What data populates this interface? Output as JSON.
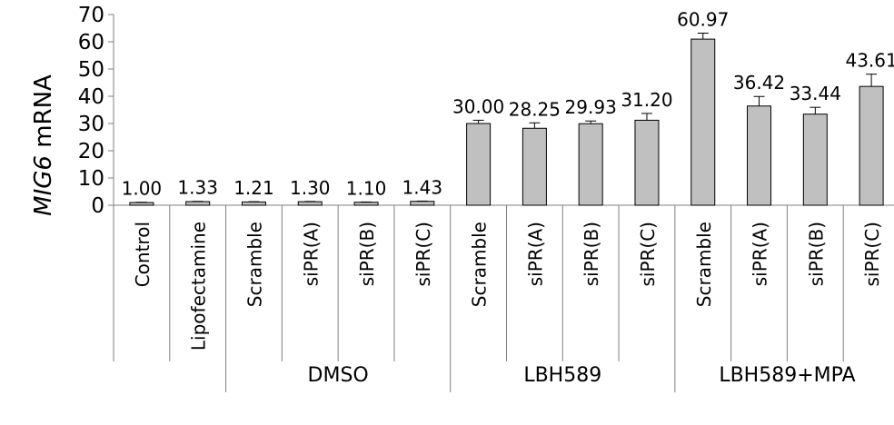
{
  "chart_data": {
    "type": "bar",
    "ylabel_italic": "MIG6",
    "ylabel_rest": " mRNA",
    "ylim": [
      0,
      70
    ],
    "yticks": [
      0,
      10,
      20,
      30,
      40,
      50,
      60,
      70
    ],
    "grid": false,
    "bar_color": "#c0c0c0",
    "categories": [
      "Control",
      "Lipofectamine",
      "Scramble",
      "siPR(A)",
      "siPR(B)",
      "siPR(C)",
      "Scramble",
      "siPR(A)",
      "siPR(B)",
      "siPR(C)",
      "Scramble",
      "siPR(A)",
      "siPR(B)",
      "siPR(C)"
    ],
    "values": [
      1.0,
      1.33,
      1.21,
      1.3,
      1.1,
      1.43,
      30.0,
      28.25,
      29.93,
      31.2,
      60.97,
      36.42,
      33.44,
      43.61
    ],
    "value_labels": [
      "1.00",
      "1.33",
      "1.21",
      "1.30",
      "1.10",
      "1.43",
      "30.00",
      "28.25",
      "29.93",
      "31.20",
      "60.97",
      "36.42",
      "33.44",
      "43.61"
    ],
    "errors": [
      0.1,
      0.1,
      0.1,
      0.1,
      0.1,
      0.1,
      1.2,
      2.0,
      1.0,
      2.5,
      2.2,
      3.5,
      2.5,
      4.5
    ],
    "groups": [
      {
        "label": "DMSO",
        "start": 2,
        "end": 5
      },
      {
        "label": "LBH589",
        "start": 6,
        "end": 9
      },
      {
        "label": "LBH589+MPA",
        "start": 10,
        "end": 13
      }
    ]
  }
}
